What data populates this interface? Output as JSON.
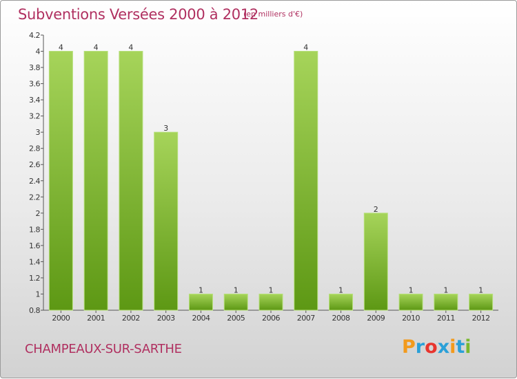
{
  "title": "Subventions Versées 2000 à 2012",
  "unit_note": "(en milliers d'€)",
  "commune": "CHAMPEAUX-SUR-SARTHE",
  "logo": {
    "text": "Proxiti",
    "letters": [
      "P",
      "r",
      "o",
      "x",
      "i",
      "t",
      "i"
    ],
    "colors": [
      "#f29a1c",
      "#2aa0d8",
      "#e8352e",
      "#2aa0d8",
      "#f29a1c",
      "#2aa0d8",
      "#7ab82e"
    ]
  },
  "colors": {
    "bar_light": "#a6d45a",
    "bar_dark": "#5d9814",
    "accent": "#b03060"
  },
  "chart_data": {
    "type": "bar",
    "categories": [
      "2000",
      "2001",
      "2002",
      "2003",
      "2004",
      "2005",
      "2006",
      "2007",
      "2008",
      "2009",
      "2010",
      "2011",
      "2012"
    ],
    "values": [
      4,
      4,
      4,
      3,
      1,
      1,
      1,
      4,
      1,
      2,
      1,
      1,
      1
    ],
    "data_labels": [
      "4",
      "4",
      "4",
      "3",
      "1",
      "1",
      "1",
      "4",
      "1",
      "2",
      "1",
      "1",
      "1"
    ],
    "ylim": [
      0.8,
      4.2
    ],
    "yticks": [
      0.8,
      1,
      1.2,
      1.4,
      1.6,
      1.8,
      2,
      2.2,
      2.4,
      2.6,
      2.8,
      3,
      3.2,
      3.4,
      3.6,
      3.8,
      4,
      4.2
    ],
    "ytick_labels": [
      "0.8",
      "1",
      "1.2",
      "1.4",
      "1.6",
      "1.8",
      "2",
      "2.2",
      "2.4",
      "2.6",
      "2.8",
      "3",
      "3.2",
      "3.4",
      "3.6",
      "3.8",
      "4",
      "4.2"
    ],
    "title": "Subventions Versées 2000 à 2012",
    "xlabel": "",
    "ylabel": "",
    "grid": false
  }
}
